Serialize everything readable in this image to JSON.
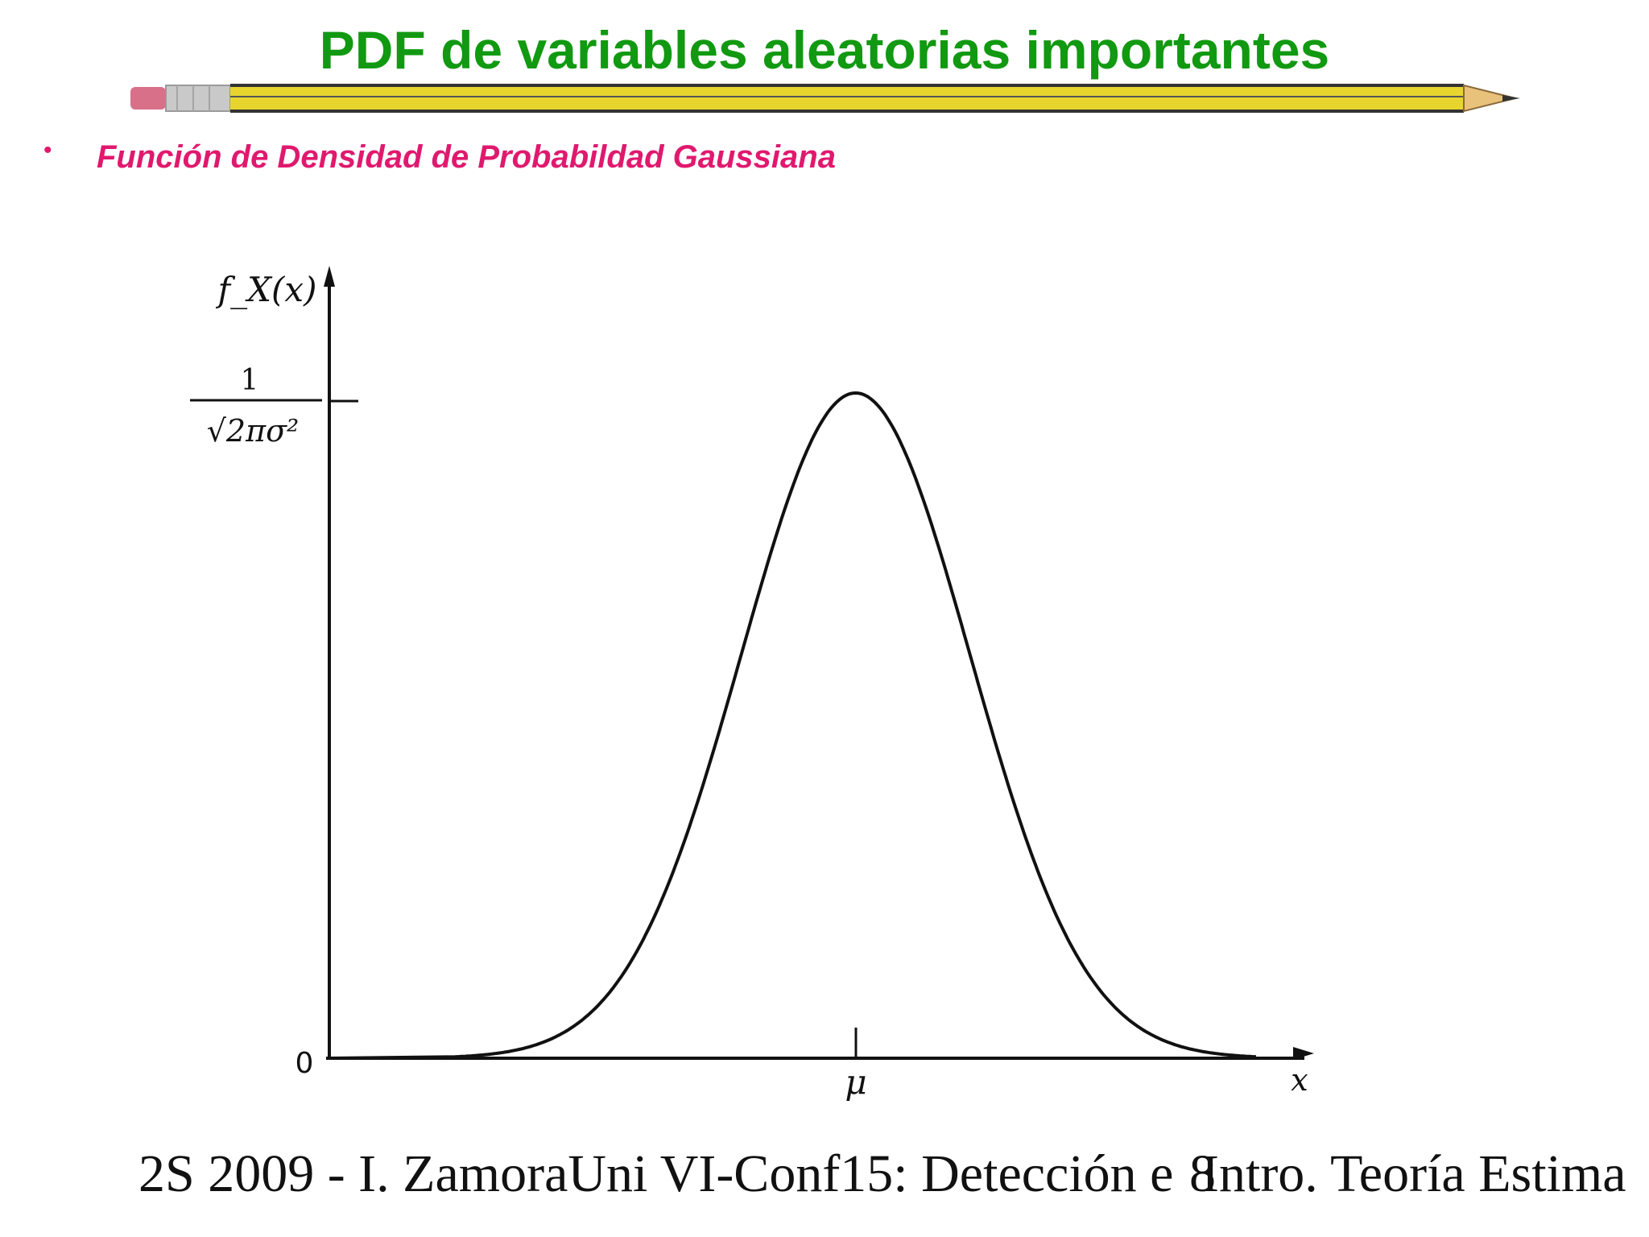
{
  "slide": {
    "title": "PDF de variables aleatorias importantes",
    "bullet": "Función de Densidad de Probabildad Gaussiana",
    "footer_left": "2S 2009 - I. ZamoraUni VI-Conf15: Detección e",
    "footer_page": "8",
    "footer_right": "Intro. Teoría Estima"
  },
  "colors": {
    "title": "#119911",
    "bullet": "#e0196e",
    "curve": "#111111",
    "pencil_body": "#e7d52e",
    "pencil_eraser": "#d9708a"
  },
  "icons": {
    "pencil": "pencil-divider-icon",
    "bullet": "bullet-dot-icon"
  },
  "chart_data": {
    "type": "line",
    "ylabel": "f_X(x)",
    "xlabel": "x",
    "x_tick_labels": [
      "μ"
    ],
    "y_tick_labels": [
      "0",
      "1/√(2πσ²)"
    ],
    "peak": {
      "x": "μ",
      "y": "1/√(2πσ²)"
    },
    "x_range_sigma": [
      -4.6,
      3.5
    ],
    "series": [
      {
        "x": [
          -3.5,
          -3.0,
          -2.5,
          -2.0,
          -1.5,
          -1.0,
          -0.5,
          0.0,
          0.5,
          1.0,
          1.5,
          2.0,
          2.5,
          3.0,
          3.5
        ],
        "values": [
          0.002,
          0.011,
          0.044,
          0.135,
          0.325,
          0.607,
          0.882,
          1.0,
          0.882,
          0.607,
          0.325,
          0.135,
          0.044,
          0.011,
          0.002
        ]
      }
    ],
    "grid": false,
    "legend": "none"
  }
}
